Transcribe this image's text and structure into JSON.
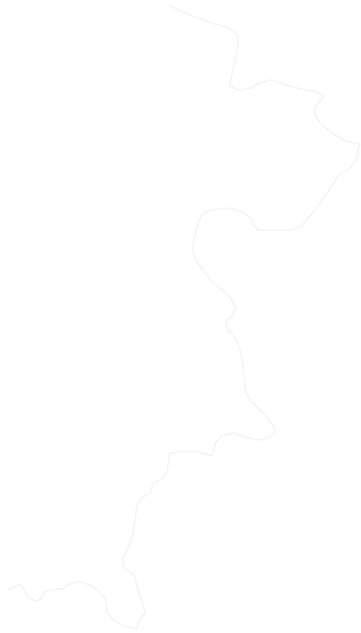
{
  "map": {
    "background_color": "#ffffff",
    "boundary_color": "#f0f0f0",
    "labels": []
  }
}
